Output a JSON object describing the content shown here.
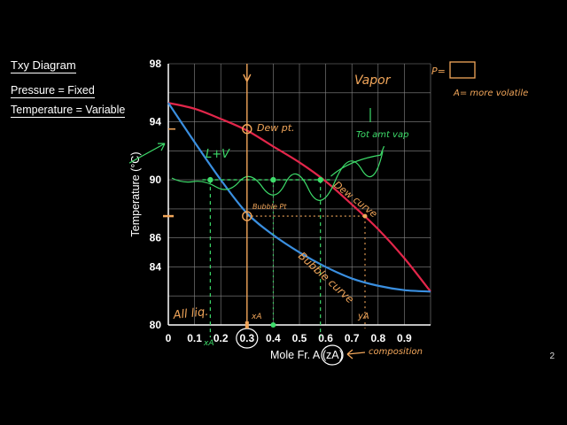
{
  "header": {
    "title": "Txy Diagram",
    "line1": "Pressure = Fixed",
    "line2": "Temperature = Variable"
  },
  "slide_number": "2",
  "colors": {
    "dew_curve": "#e2264a",
    "bubble_curve": "#3a8fe0",
    "annotation_orange": "#f2a65a",
    "annotation_green": "#3ddc6a",
    "grid": "#888888",
    "background": "#000000"
  },
  "annotations": {
    "vapor": "Vapor",
    "p_box": "P=",
    "more_volatile": "A= more volatile",
    "dew_pt": "Dew pt.",
    "tot_amt_vap": "Tot amt vap",
    "l_plus_v": "L+V",
    "dew_curve": "Dew curve",
    "bubble_pt": "Bubble Pt",
    "bubble_curve": "Bubble curve",
    "all_liq": "All liq.",
    "xa_left": "xA",
    "xa_mid": "xA",
    "ya": "yA",
    "composition": "composition"
  },
  "chart_data": {
    "type": "line",
    "title": "",
    "xlabel": "Mole Fr. A (zA)",
    "ylabel": "Temperature (°C)",
    "xlim": [
      0,
      1
    ],
    "ylim": [
      80,
      98
    ],
    "x_ticks": [
      "0",
      "0.1",
      "0.2",
      "0.3",
      "0.4",
      "0.5",
      "0.6",
      "0.7",
      "0.8",
      "0.9"
    ],
    "y_ticks": [
      "80",
      "82",
      "84",
      "86",
      "88",
      "90",
      "92",
      "94",
      "96",
      "98"
    ],
    "y_tick_labels_shown": [
      "80",
      "84",
      "86",
      "90",
      "94",
      "98"
    ],
    "grid": true,
    "series": [
      {
        "name": "Dew curve",
        "color": "#e2264a",
        "x": [
          0,
          0.1,
          0.2,
          0.3,
          0.4,
          0.5,
          0.6,
          0.7,
          0.8,
          0.9,
          1.0
        ],
        "y": [
          95.3,
          94.9,
          94.2,
          93.4,
          92.3,
          91.2,
          89.9,
          88.3,
          86.6,
          84.6,
          82.3
        ]
      },
      {
        "name": "Bubble curve",
        "color": "#3a8fe0",
        "x": [
          0,
          0.1,
          0.2,
          0.3,
          0.4,
          0.5,
          0.6,
          0.7,
          0.8,
          0.9,
          1.0
        ],
        "y": [
          95.3,
          92.6,
          90.0,
          87.7,
          86.2,
          85.0,
          84.0,
          83.2,
          82.7,
          82.4,
          82.3
        ]
      }
    ],
    "marked_points": {
      "tie_line_T": 90.0,
      "tie_line_x": [
        0.16,
        0.4,
        0.58
      ],
      "bubble_point": {
        "x": 0.3,
        "y": 87.5
      },
      "dew_point": {
        "x": 0.3,
        "y": 93.5
      },
      "bubble_to_dew_y": {
        "x": 0.75,
        "y": 87.5
      }
    }
  }
}
